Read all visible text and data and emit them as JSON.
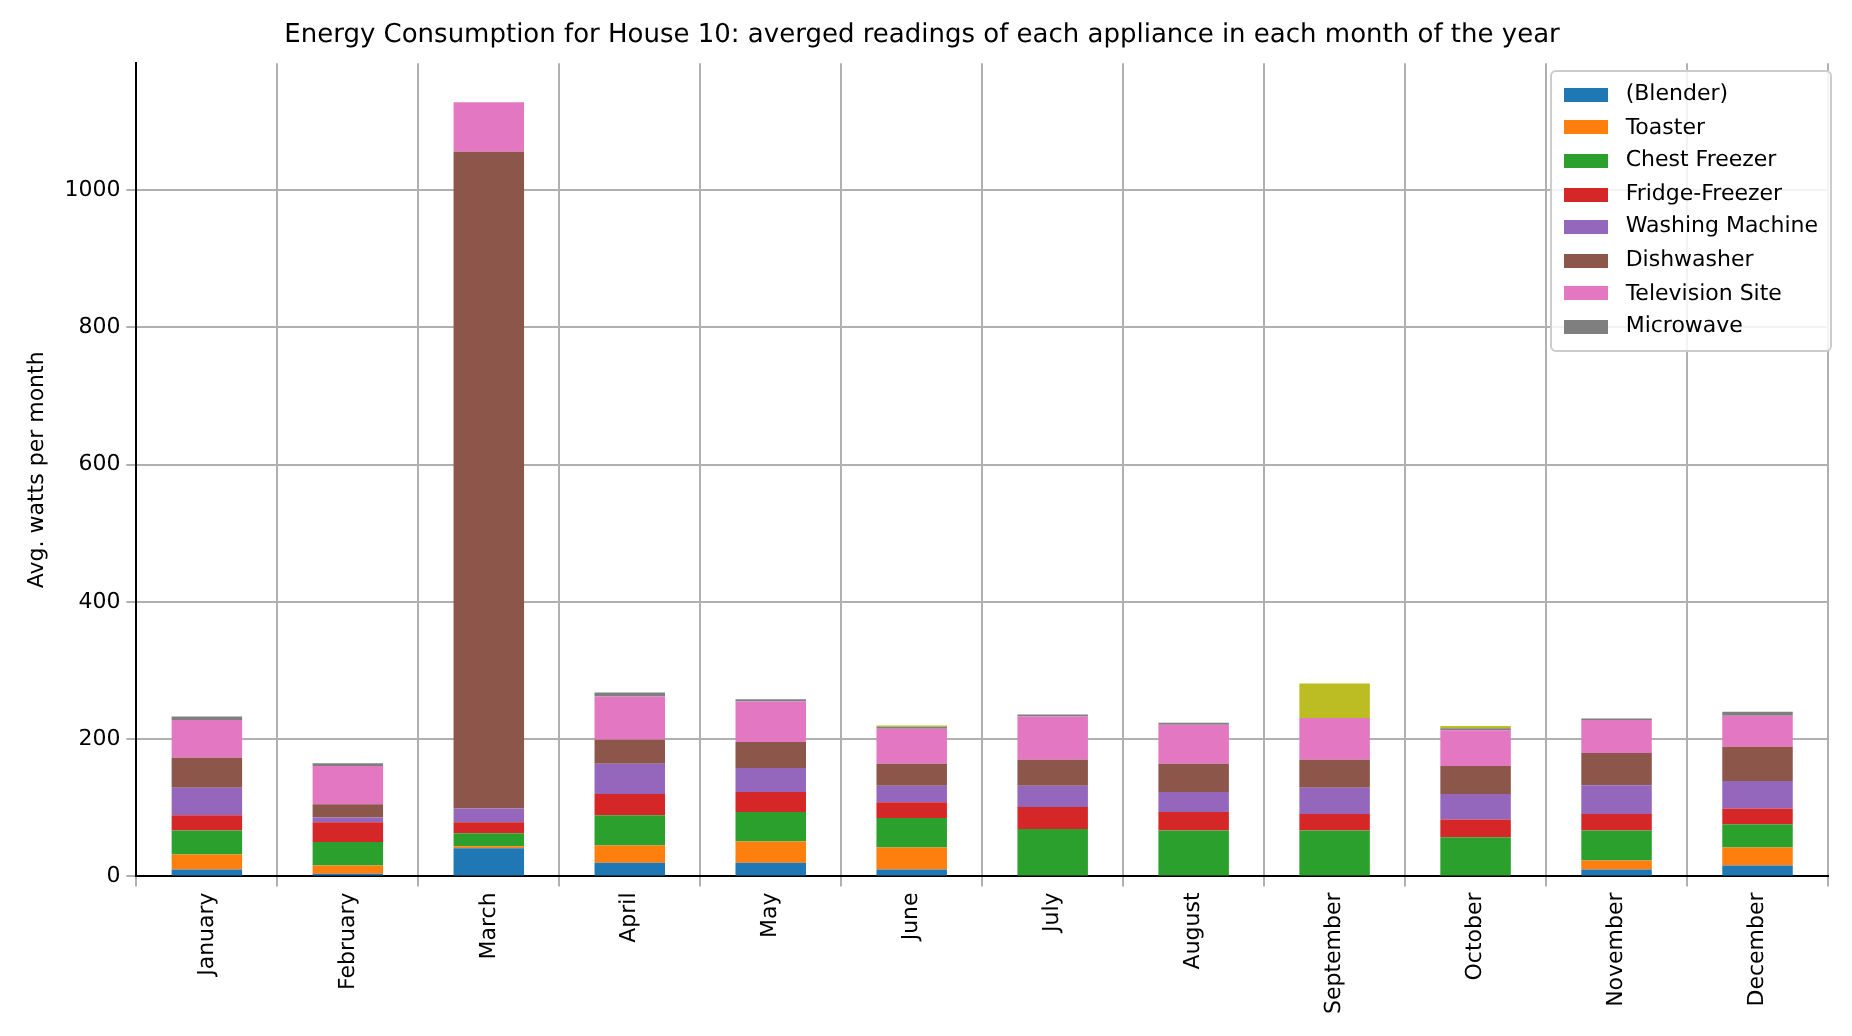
{
  "chart_data": {
    "type": "bar",
    "title": "Energy Consumption for House 10: averged readings of each appliance in each month of the year",
    "ylabel": "Avg. watts per month",
    "categories": [
      "January",
      "February",
      "March",
      "April",
      "May",
      "June",
      "July",
      "August",
      "September",
      "October",
      "November",
      "December"
    ],
    "stacked": true,
    "ylim": [
      0,
      1185
    ],
    "yticks": [
      0,
      200,
      400,
      600,
      800,
      1000
    ],
    "grid": true,
    "legend": "top right",
    "series": [
      {
        "name": "(Blender)",
        "color": "#1f77b4",
        "values": [
          10,
          4,
          41,
          20,
          20,
          10,
          0,
          0,
          0,
          0,
          10,
          16
        ]
      },
      {
        "name": "Toaster",
        "color": "#ff7f0e",
        "values": [
          22,
          12,
          3,
          25,
          31,
          32,
          0,
          0,
          0,
          0,
          13,
          26
        ]
      },
      {
        "name": "Chest Freezer",
        "color": "#2ca02c",
        "values": [
          35,
          34,
          19,
          44,
          43,
          43,
          69,
          67,
          67,
          57,
          44,
          34
        ]
      },
      {
        "name": "Fridge-Freezer",
        "color": "#d62728",
        "values": [
          22,
          29,
          16,
          31,
          29,
          23,
          32,
          27,
          24,
          26,
          24,
          23
        ]
      },
      {
        "name": "Washing Machine",
        "color": "#9467bd",
        "values": [
          40,
          7,
          20,
          44,
          35,
          24,
          31,
          29,
          38,
          37,
          42,
          40
        ]
      },
      {
        "name": "Dishwasher",
        "color": "#8c564b",
        "values": [
          44,
          19,
          957,
          35,
          38,
          32,
          38,
          41,
          41,
          41,
          47,
          50
        ]
      },
      {
        "name": "Television Site",
        "color": "#e377c2",
        "values": [
          55,
          56,
          72,
          63,
          59,
          51,
          63,
          57,
          61,
          52,
          48,
          45
        ]
      },
      {
        "name": "Microwave",
        "color": "#7f7f7f",
        "values": [
          5,
          4,
          0,
          6,
          3,
          3,
          3,
          3,
          0,
          3,
          2,
          6
        ]
      },
      {
        "color": "#bcbd22",
        "values": [
          0,
          0,
          0,
          0,
          0,
          2,
          0,
          0,
          50,
          3,
          0,
          0
        ]
      }
    ]
  }
}
